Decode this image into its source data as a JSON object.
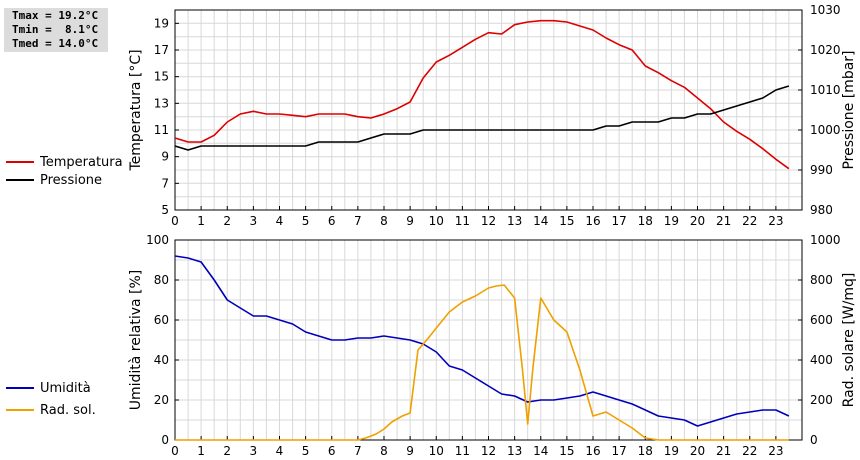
{
  "stats": [
    "Tmax = 19.2°C",
    "Tmin =  8.1°C",
    "Tmed = 14.0°C"
  ],
  "legend_top": [
    {
      "label": "Temperatura",
      "color": "#dd0000"
    },
    {
      "label": "Pressione",
      "color": "#000000"
    }
  ],
  "legend_bottom": [
    {
      "label": "Umidità",
      "color": "#0000bb"
    },
    {
      "label": "Rad. sol.",
      "color": "#f0a000"
    }
  ],
  "chart_data": [
    {
      "type": "line",
      "ylabel": "Temperatura [°C]",
      "y2label": "Pressione [mbar]",
      "xlim": [
        0,
        24
      ],
      "ylim": [
        5,
        20
      ],
      "y2lim": [
        980,
        1030
      ],
      "xticks": [
        "0",
        "1",
        "2",
        "3",
        "4",
        "5",
        "6",
        "7",
        "8",
        "9",
        "10",
        "11",
        "12",
        "13",
        "14",
        "15",
        "16",
        "17",
        "18",
        "19",
        "20",
        "21",
        "22",
        "23"
      ],
      "yticks": [
        "5",
        "7",
        "9",
        "11",
        "13",
        "15",
        "17",
        "19"
      ],
      "y2ticks": [
        "980",
        "990",
        "1000",
        "1010",
        "1020",
        "1030"
      ],
      "grid": true,
      "series": [
        {
          "name": "Temperatura",
          "axis": "left",
          "color": "#dd0000",
          "x": [
            0,
            0.5,
            1,
            1.5,
            2,
            2.5,
            3,
            3.5,
            4,
            4.5,
            5,
            5.5,
            6,
            6.5,
            7,
            7.5,
            8,
            8.5,
            9,
            9.5,
            10,
            10.5,
            11,
            11.5,
            12,
            12.5,
            13,
            13.5,
            14,
            14.5,
            15,
            15.5,
            16,
            16.5,
            17,
            17.5,
            18,
            18.5,
            19,
            19.5,
            20,
            20.5,
            21,
            21.5,
            22,
            22.5,
            23,
            23.5
          ],
          "y": [
            10.4,
            10.1,
            10.1,
            10.6,
            11.6,
            12.2,
            12.4,
            12.2,
            12.2,
            12.1,
            12.0,
            12.2,
            12.2,
            12.2,
            12.0,
            11.9,
            12.2,
            12.6,
            13.1,
            14.9,
            16.1,
            16.6,
            17.2,
            17.8,
            18.3,
            18.2,
            18.9,
            19.1,
            19.2,
            19.2,
            19.1,
            18.8,
            18.5,
            17.9,
            17.4,
            17.0,
            15.8,
            15.3,
            14.7,
            14.2,
            13.4,
            12.6,
            11.6,
            10.9,
            10.3,
            9.6,
            8.8,
            8.1
          ]
        },
        {
          "name": "Pressione",
          "axis": "right",
          "color": "#000000",
          "x": [
            0,
            0.5,
            1,
            1.5,
            2,
            2.5,
            3,
            3.5,
            4,
            4.5,
            5,
            5.5,
            6,
            6.5,
            7,
            7.5,
            8,
            8.5,
            9,
            9.5,
            10,
            11,
            12,
            13,
            14,
            15,
            15.5,
            16,
            16.5,
            17,
            17.5,
            18,
            18.5,
            19,
            19.5,
            20,
            20.5,
            21,
            21.5,
            22,
            22.5,
            23,
            23.5
          ],
          "y": [
            996,
            995,
            996,
            996,
            996,
            996,
            996,
            996,
            996,
            996,
            996,
            997,
            997,
            997,
            997,
            998,
            999,
            999,
            999,
            1000,
            1000,
            1000,
            1000,
            1000,
            1000,
            1000,
            1000,
            1000,
            1001,
            1001,
            1002,
            1002,
            1002,
            1003,
            1003,
            1004,
            1004,
            1005,
            1006,
            1007,
            1008,
            1010,
            1011
          ]
        }
      ]
    },
    {
      "type": "line",
      "ylabel": "Umidità relativa [%]",
      "y2label": "Rad. solare [W/mq]",
      "xlim": [
        0,
        24
      ],
      "ylim": [
        0,
        100
      ],
      "y2lim": [
        0,
        1000
      ],
      "xticks": [
        "0",
        "1",
        "2",
        "3",
        "4",
        "5",
        "6",
        "7",
        "8",
        "9",
        "10",
        "11",
        "12",
        "13",
        "14",
        "15",
        "16",
        "17",
        "18",
        "19",
        "20",
        "21",
        "22",
        "23"
      ],
      "yticks": [
        "0",
        "20",
        "40",
        "60",
        "80",
        "100"
      ],
      "y2ticks": [
        "0",
        "200",
        "400",
        "600",
        "800",
        "1000"
      ],
      "grid": true,
      "series": [
        {
          "name": "Umidità",
          "axis": "left",
          "color": "#0000bb",
          "x": [
            0,
            0.5,
            1,
            1.5,
            2,
            2.5,
            3,
            3.5,
            4,
            4.5,
            5,
            5.5,
            6,
            6.5,
            7,
            7.5,
            8,
            8.5,
            9,
            9.5,
            10,
            10.5,
            11,
            11.5,
            12,
            12.5,
            13,
            13.5,
            14,
            14.5,
            15,
            15.5,
            16,
            16.5,
            17,
            17.5,
            18,
            18.5,
            19,
            19.5,
            20,
            20.5,
            21,
            21.5,
            22,
            22.5,
            23,
            23.5
          ],
          "y": [
            92,
            91,
            89,
            80,
            70,
            66,
            62,
            62,
            60,
            58,
            54,
            52,
            50,
            50,
            51,
            51,
            52,
            51,
            50,
            48,
            44,
            37,
            35,
            31,
            27,
            23,
            22,
            19,
            20,
            20,
            21,
            22,
            24,
            22,
            20,
            18,
            15,
            12,
            11,
            10,
            7,
            9,
            11,
            13,
            14,
            15,
            15,
            12
          ]
        },
        {
          "name": "Rad. sol.",
          "axis": "right",
          "color": "#f0a000",
          "x": [
            0,
            1,
            2,
            3,
            4,
            5,
            6,
            7,
            7.3,
            7.7,
            8,
            8.3,
            8.7,
            9,
            9.3,
            9.7,
            10,
            10.5,
            11,
            11.5,
            12,
            12.3,
            12.6,
            13,
            13.3,
            13.5,
            13.7,
            14,
            14.5,
            15,
            15.5,
            16,
            16.5,
            17,
            17.5,
            18,
            18.5,
            19,
            20,
            21,
            22,
            23,
            23.5
          ],
          "y": [
            0,
            0,
            0,
            0,
            0,
            0,
            0,
            0,
            10,
            30,
            55,
            90,
            120,
            135,
            450,
            510,
            560,
            640,
            690,
            720,
            760,
            770,
            775,
            710,
            350,
            80,
            360,
            710,
            600,
            540,
            350,
            120,
            140,
            100,
            60,
            10,
            0,
            0,
            0,
            0,
            0,
            0,
            0
          ]
        }
      ]
    }
  ]
}
